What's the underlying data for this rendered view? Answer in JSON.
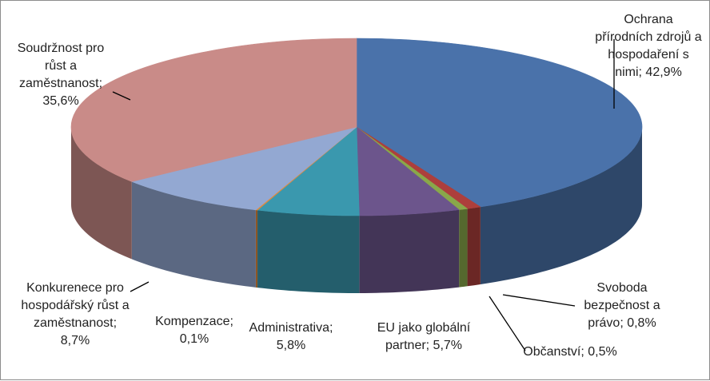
{
  "chart_data": {
    "type": "pie",
    "title": "",
    "start_angle_deg": 90,
    "direction": "clockwise",
    "slices": [
      {
        "label": "Ochrana přírodních zdrojů a hospodaření s nimi",
        "value": 42.9,
        "display": "42,9%",
        "color": "#4a72aa",
        "label_lines": [
          "Ochrana",
          "přírodních zdrojů a",
          "hospodaření s",
          "nimi; 42,9%"
        ]
      },
      {
        "label": "Svoboda bezpečnost a právo",
        "value": 0.8,
        "display": "0,8%",
        "color": "#ad3f3c",
        "label_lines": [
          "Svoboda",
          "bezpečnost a",
          "právo; 0,8%"
        ]
      },
      {
        "label": "Občanství",
        "value": 0.5,
        "display": "0,5%",
        "color": "#89a84a",
        "label_lines": [
          "Občanství; 0,5%"
        ]
      },
      {
        "label": "EU jako globální partner",
        "value": 5.7,
        "display": "5,7%",
        "color": "#6c558c",
        "label_lines": [
          "EU jako globální",
          "partner; 5,7%"
        ]
      },
      {
        "label": "Administrativa",
        "value": 5.8,
        "display": "5,8%",
        "color": "#3a98ae",
        "label_lines": [
          "Administrativa;",
          "5,8%"
        ]
      },
      {
        "label": "Kompenzace",
        "value": 0.1,
        "display": "0,1%",
        "color": "#e38a3a",
        "label_lines": [
          "Kompenzace;",
          "0,1%"
        ]
      },
      {
        "label": "Konkurenece pro hospodářský růst a zaměstnanost",
        "value": 8.7,
        "display": "8,7%",
        "color": "#93a8d2",
        "label_lines": [
          "Konkurenece pro",
          "hospodářský růst a",
          "zaměstnanost;",
          "8,7%"
        ]
      },
      {
        "label": "Soudržnost pro růst a zaměstnanost",
        "value": 35.6,
        "display": "35,6%",
        "color": "#c98b88",
        "label_lines": [
          "Soudržnost pro",
          "růst a",
          "zaměstnanost;",
          "35,6%"
        ]
      }
    ]
  }
}
